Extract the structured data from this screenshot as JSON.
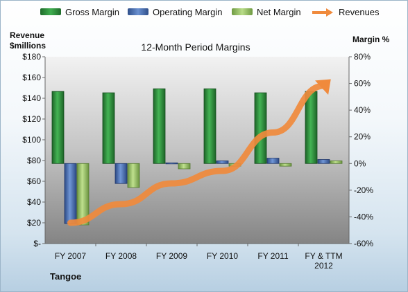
{
  "company": "Tangoe",
  "left_axis_title": [
    "Revenue",
    "$millions"
  ],
  "right_axis_title": "Margin %",
  "legend": [
    {
      "label": "Gross Margin",
      "color": "#2e8b3c",
      "kind": "bar"
    },
    {
      "label": "Operating Margin",
      "color": "#4a6fb0",
      "kind": "bar"
    },
    {
      "label": "Net Margin",
      "color": "#9bc46a",
      "kind": "bar"
    },
    {
      "label": "Revenues",
      "color": "#f08a3c",
      "kind": "arrow"
    }
  ],
  "chart_data": {
    "type": "bar",
    "title": "12-Month Period Margins",
    "categories": [
      [
        "FY 2007"
      ],
      [
        "FY 2008"
      ],
      [
        "FY 2009"
      ],
      [
        "FY 2010"
      ],
      [
        "FY 2011"
      ],
      [
        "FY & TTM",
        "2012"
      ]
    ],
    "left_axis": {
      "ylim": [
        0,
        180
      ],
      "ticks": [
        "$-",
        "$20",
        "$40",
        "$60",
        "$80",
        "$100",
        "$120",
        "$140",
        "$160",
        "$180"
      ]
    },
    "right_axis": {
      "ylim": [
        -60,
        80
      ],
      "ticks": [
        "-60%",
        "-40%",
        "-20%",
        "0%",
        "20%",
        "40%",
        "60%",
        "80%"
      ]
    },
    "series": [
      {
        "name": "Gross Margin",
        "axis": "right",
        "unit": "%",
        "values": [
          54,
          53,
          56,
          56,
          53,
          54
        ]
      },
      {
        "name": "Operating Margin",
        "axis": "right",
        "unit": "%",
        "values": [
          -45,
          -15,
          0.5,
          2,
          4,
          3
        ]
      },
      {
        "name": "Net Margin",
        "axis": "right",
        "unit": "%",
        "values": [
          -46,
          -18,
          -4,
          -2,
          -2,
          2
        ]
      },
      {
        "name": "Revenues",
        "axis": "left",
        "unit": "$millions",
        "type": "line-arrow",
        "values": [
          20,
          38,
          58,
          70,
          107,
          152
        ]
      }
    ],
    "grid": false,
    "legend_position": "top"
  }
}
